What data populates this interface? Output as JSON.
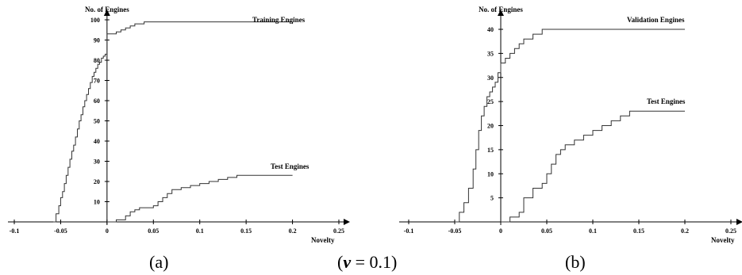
{
  "chart_data": [
    {
      "type": "line",
      "panel": "a",
      "ylabel": "No. of Engines",
      "xlabel": "Novelty",
      "xlim": [
        -0.1,
        0.25
      ],
      "ylim": [
        0,
        100
      ],
      "xticks": [
        "-0.1",
        "-0.05",
        "0",
        "0.05",
        "0.1",
        "0.15",
        "0.2",
        "0.25"
      ],
      "yticks": [
        "10",
        "20",
        "30",
        "40",
        "50",
        "60",
        "70",
        "80",
        "90",
        "100"
      ],
      "series": [
        {
          "name": "Training Engines",
          "x": [
            -0.058,
            -0.055,
            -0.052,
            -0.05,
            -0.048,
            -0.046,
            -0.044,
            -0.042,
            -0.04,
            -0.038,
            -0.036,
            -0.034,
            -0.032,
            -0.03,
            -0.028,
            -0.026,
            -0.024,
            -0.022,
            -0.02,
            -0.018,
            -0.016,
            -0.014,
            -0.012,
            -0.01,
            -0.008,
            -0.006,
            -0.004,
            -0.002,
            0.0,
            0.0,
            0.01,
            0.015,
            0.02,
            0.025,
            0.03,
            0.04,
            0.08,
            0.2
          ],
          "values": [
            0,
            4,
            8,
            12,
            15,
            19,
            23,
            27,
            31,
            35,
            38,
            42,
            46,
            50,
            53,
            57,
            60,
            63,
            66,
            69,
            72,
            74,
            76,
            78,
            79,
            81,
            82,
            83,
            83,
            93,
            94,
            95,
            96,
            97,
            98,
            99,
            99,
            98
          ]
        },
        {
          "name": "Test Engines",
          "x": [
            0.0,
            0.01,
            0.02,
            0.025,
            0.03,
            0.035,
            0.05,
            0.055,
            0.06,
            0.065,
            0.07,
            0.08,
            0.09,
            0.1,
            0.11,
            0.12,
            0.13,
            0.14,
            0.2
          ],
          "values": [
            0,
            1,
            3,
            5,
            6,
            7,
            8,
            10,
            12,
            14,
            16,
            17,
            18,
            19,
            20,
            21,
            22,
            23,
            23
          ]
        }
      ],
      "legend": "inline-labels"
    },
    {
      "type": "line",
      "panel": "b",
      "ylabel": "No. of Engines",
      "xlabel": "Novelty",
      "xlim": [
        -0.1,
        0.25
      ],
      "ylim": [
        0,
        40
      ],
      "xticks": [
        "-0.1",
        "-0.05",
        "0",
        "0.05",
        "0.1",
        "0.15",
        "0.2",
        "0.25"
      ],
      "yticks": [
        "5",
        "10",
        "15",
        "20",
        "25",
        "30",
        "35",
        "40"
      ],
      "series": [
        {
          "name": "Validation Engines",
          "x": [
            -0.05,
            -0.045,
            -0.04,
            -0.035,
            -0.03,
            -0.027,
            -0.024,
            -0.021,
            -0.018,
            -0.015,
            -0.012,
            -0.009,
            -0.006,
            -0.003,
            0.0,
            0.0,
            0.005,
            0.01,
            0.015,
            0.02,
            0.025,
            0.035,
            0.045,
            0.06,
            0.2
          ],
          "values": [
            0,
            2,
            4,
            7,
            11,
            15,
            19,
            22,
            24,
            26,
            27,
            28,
            29,
            31,
            32,
            33,
            34,
            35,
            36,
            37,
            38,
            39,
            40,
            40,
            40
          ]
        },
        {
          "name": "Test Engines",
          "x": [
            0.0,
            0.01,
            0.02,
            0.025,
            0.035,
            0.045,
            0.05,
            0.055,
            0.06,
            0.065,
            0.07,
            0.08,
            0.09,
            0.1,
            0.11,
            0.12,
            0.13,
            0.14,
            0.2
          ],
          "values": [
            0,
            1,
            2,
            5,
            7,
            8,
            10,
            12,
            14,
            15,
            16,
            17,
            18,
            19,
            20,
            21,
            22,
            23,
            23
          ]
        }
      ],
      "legend": "inline-labels"
    }
  ],
  "captions": {
    "a": "(a)",
    "b": "(b)",
    "middle_prefix": "(",
    "middle_symbol": "ν",
    "middle_suffix": " = 0.1)"
  }
}
